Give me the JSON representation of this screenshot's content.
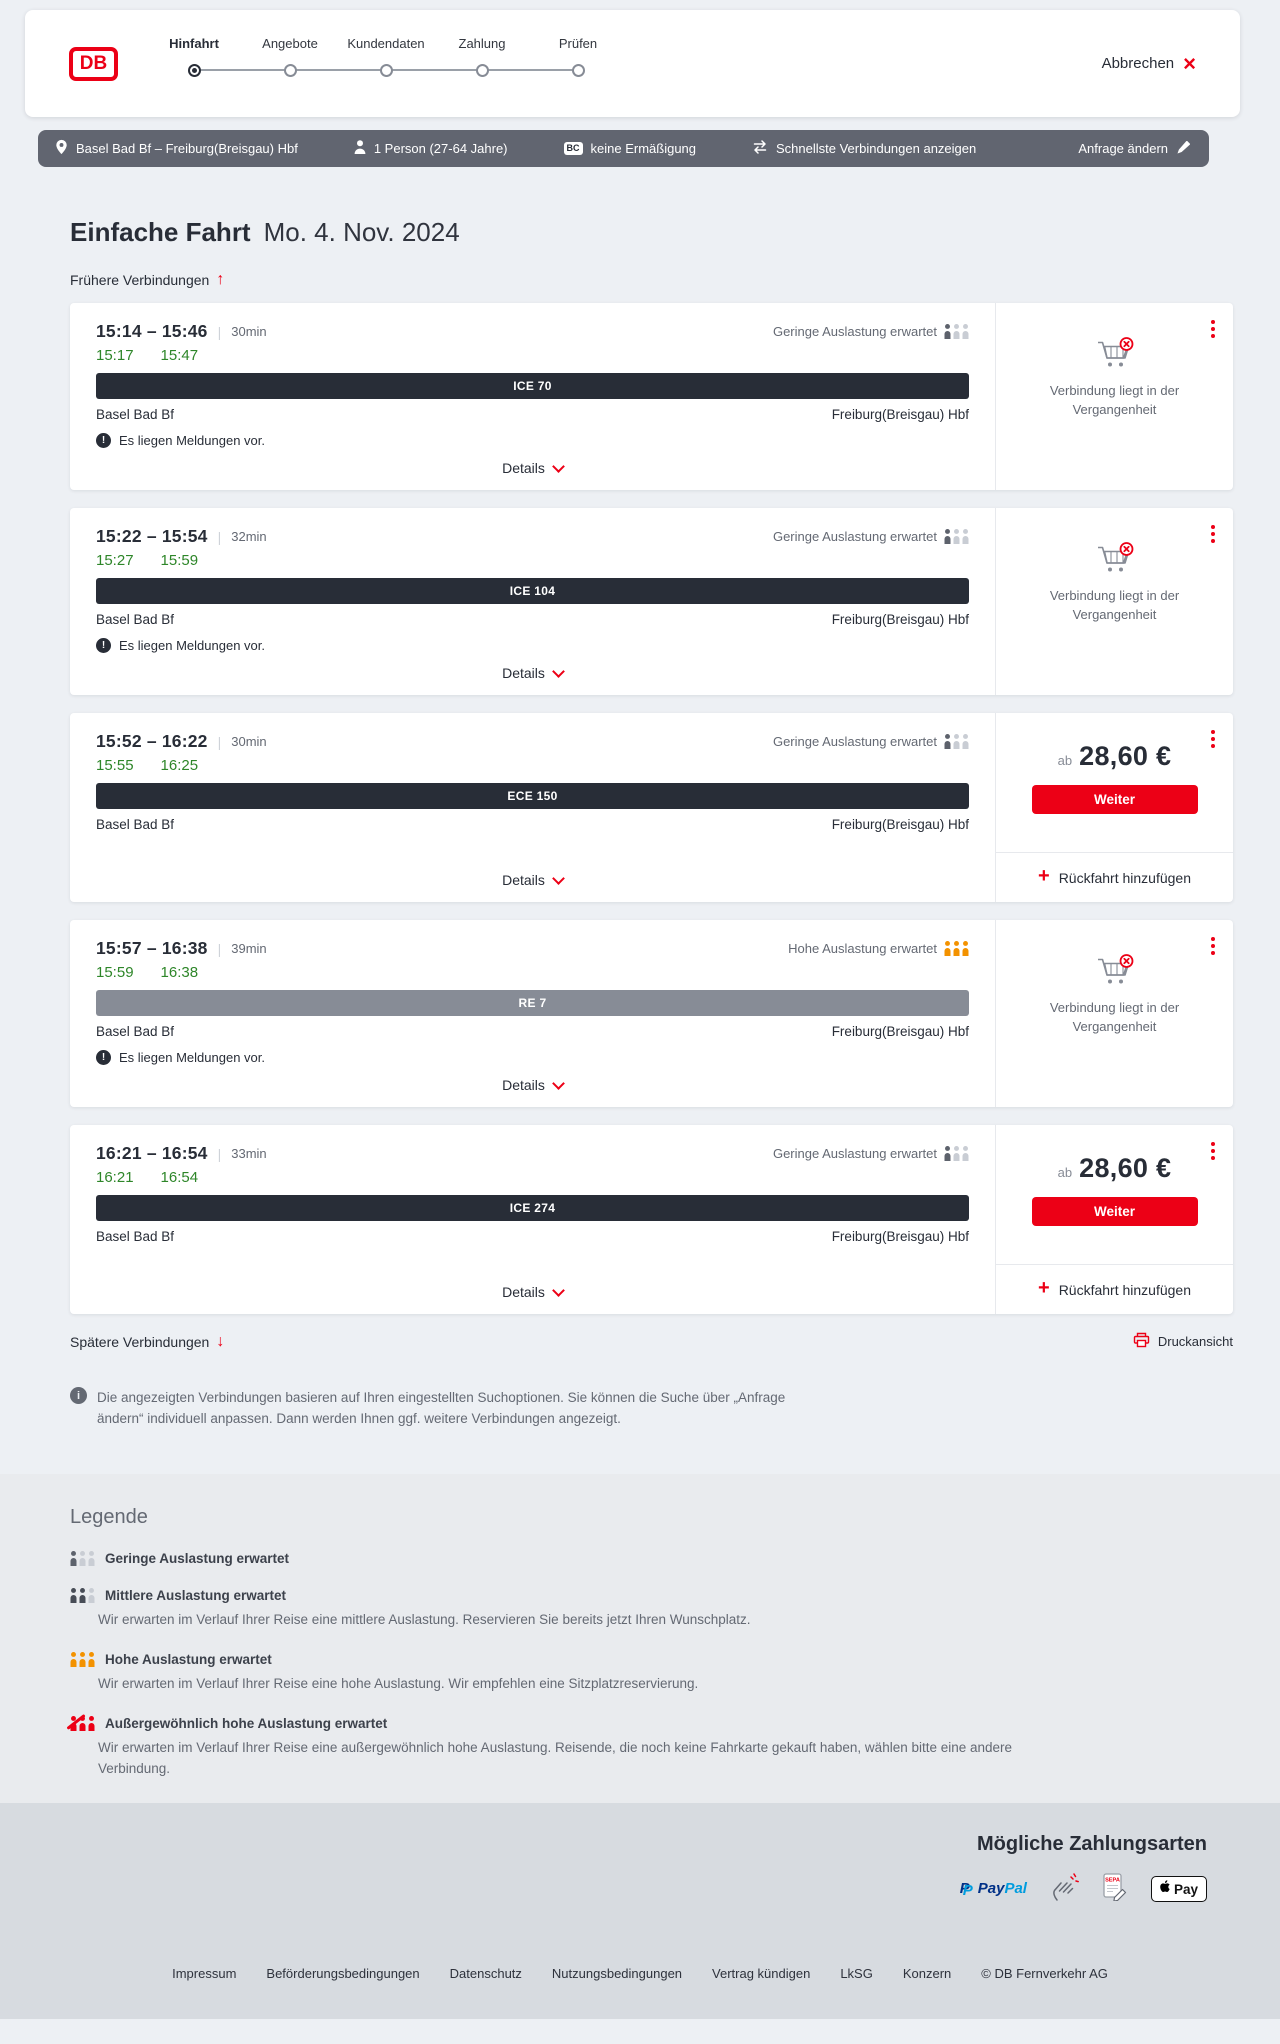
{
  "labels": {
    "time_dash": "–",
    "duration_sep": "|",
    "price_prefix": "ab",
    "details_label": "Details"
  },
  "icons": {
    "close": "×",
    "up_arrow": "↑",
    "down_arrow": "↓",
    "plus": "+",
    "info": "i",
    "notice_exclamation": "!"
  },
  "colors": {
    "brand_red": "#ec0016",
    "dark": "#282d37",
    "green": "#2e8629",
    "orange": "#f39200",
    "train_bar_dark": "#282d37",
    "train_bar_gray": "#878c96"
  },
  "header": {
    "logo_text": "DB",
    "cancel_label": "Abbrechen",
    "steps": [
      {
        "label": "Hinfahrt",
        "active": true
      },
      {
        "label": "Angebote",
        "active": false
      },
      {
        "label": "Kundendaten",
        "active": false
      },
      {
        "label": "Zahlung",
        "active": false
      },
      {
        "label": "Prüfen",
        "active": false
      }
    ]
  },
  "summary_bar": {
    "route": "Basel Bad Bf – Freiburg(Breisgau) Hbf",
    "passengers": "1 Person (27-64 Jahre)",
    "bahncard_badge": "BC",
    "discount": "keine Ermäßigung",
    "filter": "Schnellste Verbindungen anzeigen",
    "edit_label": "Anfrage ändern"
  },
  "page": {
    "title": "Einfache Fahrt",
    "date": "Mo. 4. Nov. 2024",
    "earlier_label": "Frühere Verbindungen",
    "later_label": "Spätere Verbindungen",
    "print_label": "Druckansicht",
    "info_text": "Die angezeigten Verbindungen basieren auf Ihren eingestellten Suchoptionen. Sie können die Suche über „Anfrage ändern“ individuell anpassen. Dann werden Ihnen ggf. weitere Verbindungen angezeigt."
  },
  "connections": [
    {
      "depart": "15:14",
      "arrive": "15:46",
      "duration": "30min",
      "rt_depart": "15:17",
      "rt_arrive": "15:47",
      "train": "ICE 70",
      "train_style": "dark",
      "from": "Basel Bad Bf",
      "to": "Freiburg(Breisgau) Hbf",
      "occupancy_text": "Geringe Auslastung erwartet",
      "occupancy_level": "low",
      "notice": "Es liegen Meldungen vor.",
      "action": {
        "type": "past",
        "text": "Verbindung liegt in der Vergangenheit"
      }
    },
    {
      "depart": "15:22",
      "arrive": "15:54",
      "duration": "32min",
      "rt_depart": "15:27",
      "rt_arrive": "15:59",
      "train": "ICE 104",
      "train_style": "dark",
      "from": "Basel Bad Bf",
      "to": "Freiburg(Breisgau) Hbf",
      "occupancy_text": "Geringe Auslastung erwartet",
      "occupancy_level": "low",
      "notice": "Es liegen Meldungen vor.",
      "action": {
        "type": "past",
        "text": "Verbindung liegt in der Vergangenheit"
      }
    },
    {
      "depart": "15:52",
      "arrive": "16:22",
      "duration": "30min",
      "rt_depart": "15:55",
      "rt_arrive": "16:25",
      "train": "ECE 150",
      "train_style": "dark",
      "from": "Basel Bad Bf",
      "to": "Freiburg(Breisgau) Hbf",
      "occupancy_text": "Geringe Auslastung erwartet",
      "occupancy_level": "low",
      "notice": null,
      "action": {
        "type": "price",
        "price": "28,60 €",
        "button_label": "Weiter",
        "return_label": "Rückfahrt hinzufügen"
      }
    },
    {
      "depart": "15:57",
      "arrive": "16:38",
      "duration": "39min",
      "rt_depart": "15:59",
      "rt_arrive": "16:38",
      "train": "RE 7",
      "train_style": "gray",
      "from": "Basel Bad Bf",
      "to": "Freiburg(Breisgau) Hbf",
      "occupancy_text": "Hohe Auslastung erwartet",
      "occupancy_level": "high",
      "notice": "Es liegen Meldungen vor.",
      "action": {
        "type": "past",
        "text": "Verbindung liegt in der Vergangenheit"
      }
    },
    {
      "depart": "16:21",
      "arrive": "16:54",
      "duration": "33min",
      "rt_depart": "16:21",
      "rt_arrive": "16:54",
      "train": "ICE 274",
      "train_style": "dark",
      "from": "Basel Bad Bf",
      "to": "Freiburg(Breisgau) Hbf",
      "occupancy_text": "Geringe Auslastung erwartet",
      "occupancy_level": "low",
      "notice": null,
      "action": {
        "type": "price",
        "price": "28,60 €",
        "button_label": "Weiter",
        "return_label": "Rückfahrt hinzufügen"
      }
    }
  ],
  "legend": {
    "title": "Legende",
    "items": [
      {
        "level": "low",
        "label": "Geringe Auslastung erwartet",
        "desc": null
      },
      {
        "level": "medium",
        "label": "Mittlere Auslastung erwartet",
        "desc": "Wir erwarten im Verlauf Ihrer Reise eine mittlere Auslastung. Reservieren Sie bereits jetzt Ihren Wunschplatz."
      },
      {
        "level": "high",
        "label": "Hohe Auslastung erwartet",
        "desc": "Wir erwarten im Verlauf Ihrer Reise eine hohe Auslastung. Wir empfehlen eine Sitzplatzreservierung."
      },
      {
        "level": "exceptional",
        "label": "Außergewöhnlich hohe Auslastung erwartet",
        "desc": "Wir erwarten im Verlauf Ihrer Reise eine außergewöhnlich hohe Auslastung. Reisende, die noch keine Fahrkarte gekauft haben, wählen bitte eine andere Verbindung."
      }
    ]
  },
  "payments": {
    "title": "Mögliche Zahlungsarten",
    "methods": [
      {
        "id": "paypal",
        "label_dark": "Pay",
        "label_light": "Pal"
      },
      {
        "id": "hand"
      },
      {
        "id": "sepa",
        "label": "SEPA"
      },
      {
        "id": "apple-pay",
        "label": "Pay"
      }
    ]
  },
  "footer": {
    "links": [
      "Impressum",
      "Beförderungsbedingungen",
      "Datenschutz",
      "Nutzungsbedingungen",
      "Vertrag kündigen",
      "LkSG",
      "Konzern",
      "© DB Fernverkehr AG"
    ]
  }
}
